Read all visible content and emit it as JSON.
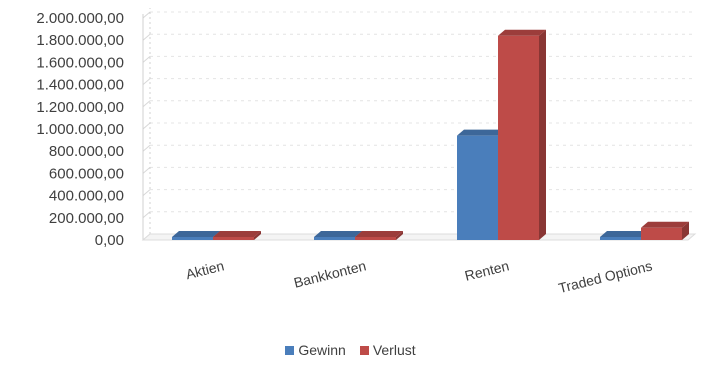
{
  "chart_data": {
    "type": "bar",
    "style": "3d-clustered-column",
    "categories": [
      "Aktien",
      "Bankkonten",
      "Renten",
      "Traded Options"
    ],
    "series": [
      {
        "name": "Gewinn",
        "color": "#4a7ebb",
        "values": [
          0,
          0,
          940000,
          0
        ]
      },
      {
        "name": "Verlust",
        "color": "#be4b48",
        "values": [
          0,
          0,
          1840000,
          110000
        ]
      }
    ],
    "ylim": [
      0,
      2000000
    ],
    "ytick_step": 200000,
    "ytick_labels": [
      "0,00",
      "200.000,00",
      "400.000,00",
      "600.000,00",
      "800.000,00",
      "1.000.000,00",
      "1.200.000,00",
      "1.400.000,00",
      "1.600.000,00",
      "1.800.000,00",
      "2.000.000,00"
    ],
    "grid": true,
    "legend_position": "bottom"
  }
}
